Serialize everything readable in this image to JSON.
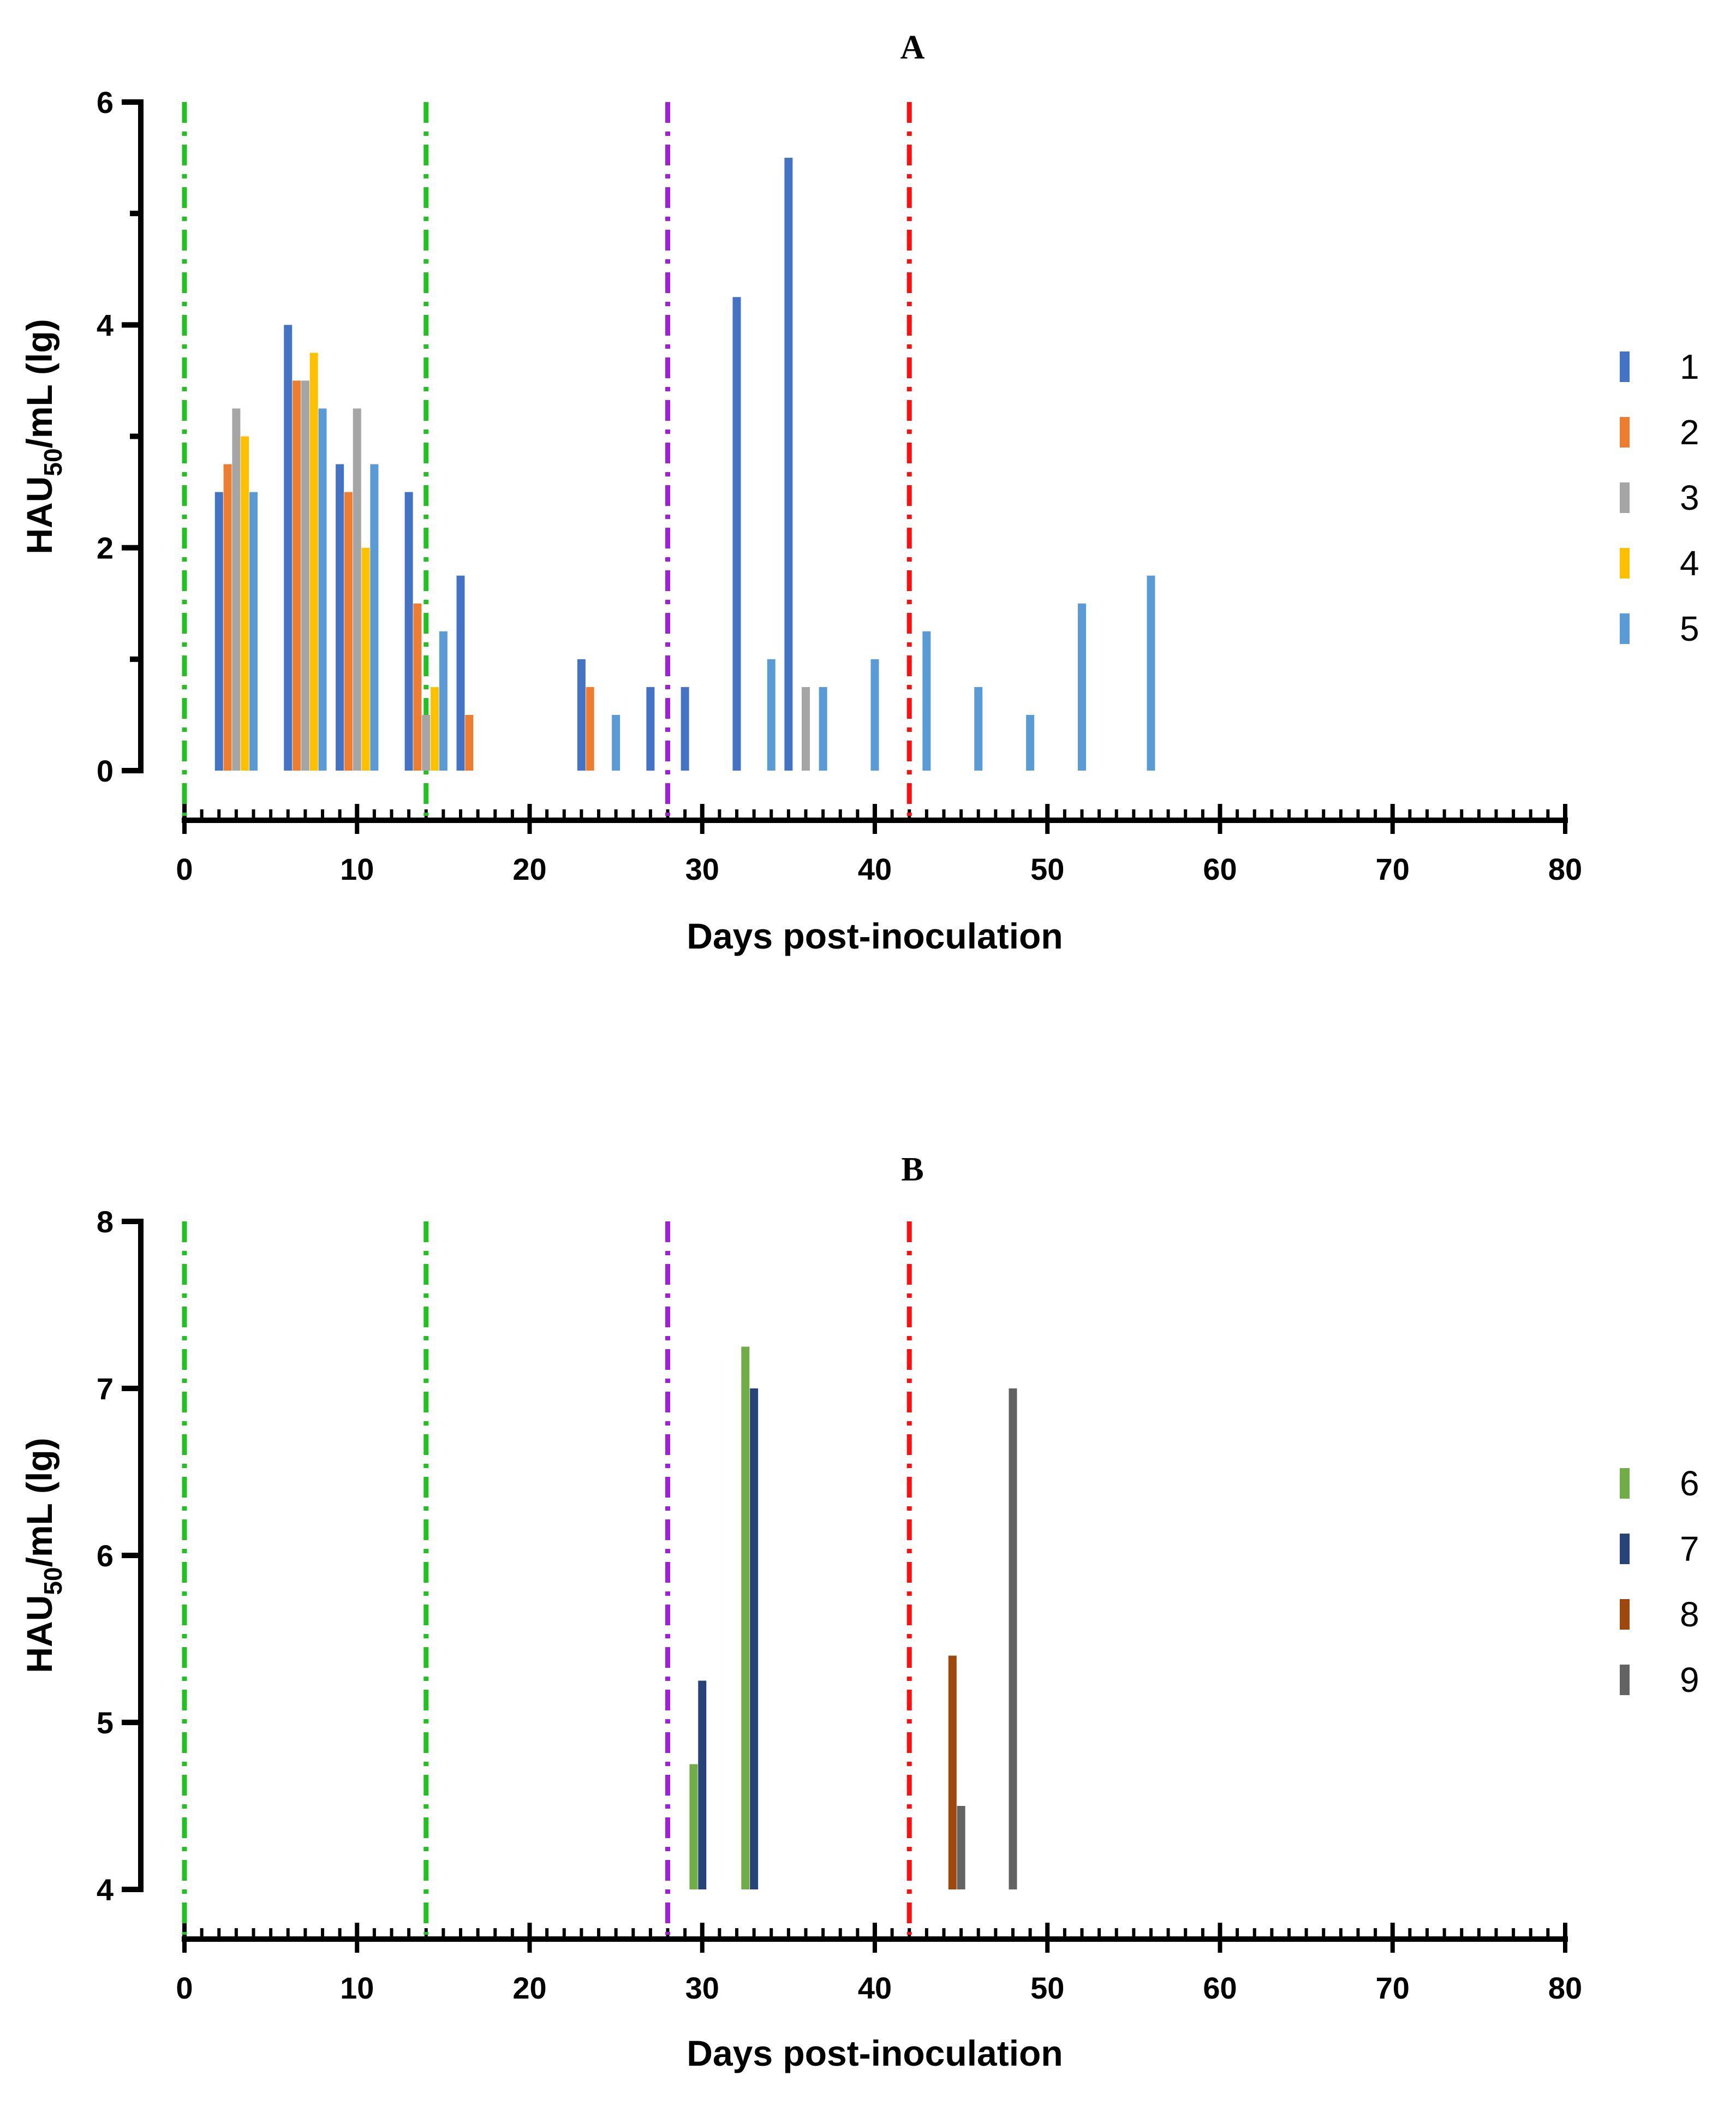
{
  "chart_data": [
    {
      "type": "bar",
      "title": "A",
      "xlabel": "Days post-inoculation",
      "ylabel_main": "HAU",
      "ylabel_sub": "50",
      "ylabel_rest": "/mL (lg)",
      "xlim": [
        0,
        80
      ],
      "ylim": [
        0,
        6
      ],
      "xticks": [
        0,
        10,
        20,
        30,
        40,
        50,
        60,
        70,
        80
      ],
      "yticks": [
        0,
        2,
        4,
        6
      ],
      "ytick_labels": [
        "0",
        "2",
        "4",
        "6"
      ],
      "xtick_labels": [
        "0",
        "10",
        "20",
        "30",
        "40",
        "50",
        "60",
        "70",
        "80"
      ],
      "vlines": [
        {
          "x": 0,
          "color": "#22c022",
          "style": "dash-dot"
        },
        {
          "x": 14,
          "color": "#22c022",
          "style": "dash-dot"
        },
        {
          "x": 28,
          "color": "#a020d8",
          "style": "dash-dot"
        },
        {
          "x": 42,
          "color": "#ff1010",
          "style": "dash-dot"
        }
      ],
      "series": [
        {
          "name": "1",
          "color": "#4472C4",
          "x": [
            2,
            6,
            9,
            13,
            16,
            23,
            27,
            29,
            32,
            35
          ],
          "values": [
            2.5,
            4.0,
            2.75,
            2.5,
            1.75,
            1.0,
            0.75,
            0.75,
            4.25,
            5.5
          ]
        },
        {
          "name": "2",
          "color": "#ED7D31",
          "x": [
            2.5,
            6.5,
            9.5,
            13.5,
            16.5,
            23.5
          ],
          "values": [
            2.75,
            3.5,
            2.5,
            1.5,
            0.5,
            0.75
          ]
        },
        {
          "name": "3",
          "color": "#A5A5A5",
          "x": [
            3,
            7,
            10,
            14,
            36
          ],
          "values": [
            3.25,
            3.5,
            3.25,
            0.5,
            0.75
          ]
        },
        {
          "name": "4",
          "color": "#FFC000",
          "x": [
            3.5,
            7.5,
            10.5,
            14.5
          ],
          "values": [
            3.0,
            3.75,
            2.0,
            0.75
          ]
        },
        {
          "name": "5",
          "color": "#5B9BD5",
          "x": [
            4,
            8,
            11,
            15,
            25,
            34,
            37,
            40,
            43,
            46,
            49,
            52,
            56
          ],
          "values": [
            2.5,
            3.25,
            2.75,
            1.25,
            0.5,
            1.0,
            0.75,
            1.0,
            1.25,
            0.75,
            0.5,
            1.5,
            1.75
          ]
        }
      ]
    },
    {
      "type": "bar",
      "title": "B",
      "xlabel": "Days post-inoculation",
      "ylabel_main": "HAU",
      "ylabel_sub": "50",
      "ylabel_rest": "/mL (lg)",
      "xlim": [
        0,
        80
      ],
      "ylim": [
        4,
        8
      ],
      "xticks": [
        0,
        10,
        20,
        30,
        40,
        50,
        60,
        70,
        80
      ],
      "yticks": [
        4,
        5,
        6,
        7,
        8
      ],
      "ytick_labels": [
        "4",
        "5",
        "6",
        "7",
        "8"
      ],
      "xtick_labels": [
        "0",
        "10",
        "20",
        "30",
        "40",
        "50",
        "60",
        "70",
        "80"
      ],
      "vlines": [
        {
          "x": 0,
          "color": "#22c022",
          "style": "dash-dot"
        },
        {
          "x": 14,
          "color": "#22c022",
          "style": "dash-dot"
        },
        {
          "x": 28,
          "color": "#a020d8",
          "style": "dash-dot"
        },
        {
          "x": 42,
          "color": "#ff1010",
          "style": "dash-dot"
        }
      ],
      "series": [
        {
          "name": "6",
          "color": "#70AD47",
          "x": [
            29.5,
            32.5
          ],
          "values": [
            4.75,
            7.25
          ]
        },
        {
          "name": "7",
          "color": "#264478",
          "x": [
            30,
            33
          ],
          "values": [
            5.25,
            7.0
          ]
        },
        {
          "name": "8",
          "color": "#9E480E",
          "x": [
            44.5
          ],
          "values": [
            5.4
          ]
        },
        {
          "name": "9",
          "color": "#636363",
          "x": [
            45,
            48
          ],
          "values": [
            4.5,
            7.0
          ]
        }
      ]
    }
  ]
}
